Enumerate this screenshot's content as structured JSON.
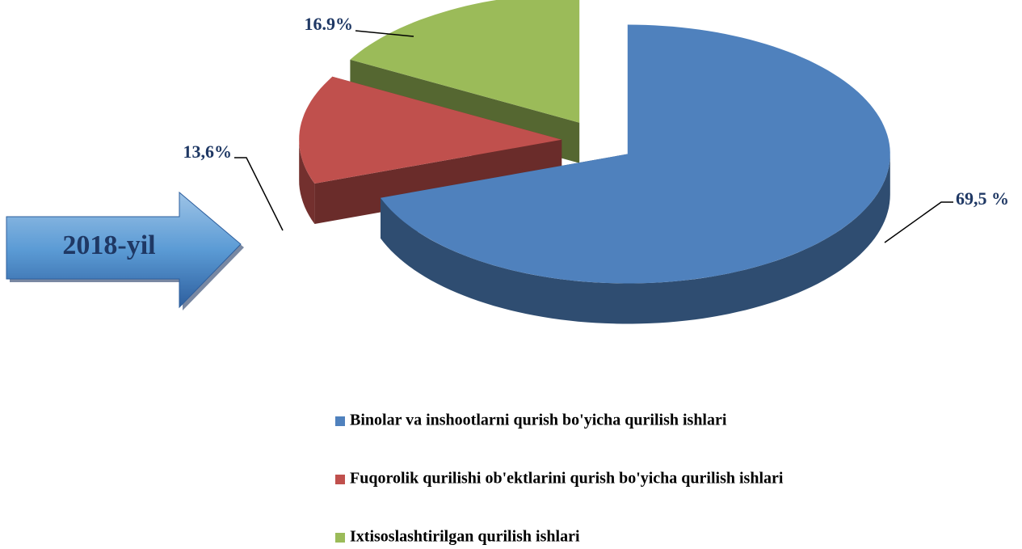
{
  "chart_data": {
    "type": "pie",
    "annotation": "2018-yil",
    "categories": [
      "Binolar va inshootlarni qurish bo'yicha qurilish ishlari",
      "Fuqorolik qurilishi ob'ektlarini qurish bo'yicha qurilish ishlari",
      "Ixtisoslashtirilgan qurilish ishlari"
    ],
    "values": [
      69.5,
      13.6,
      16.9
    ],
    "value_labels": [
      "69,5 %",
      "13,6%",
      "16.9%"
    ],
    "colors": [
      "#4f81bd",
      "#c0504d",
      "#9bbb59"
    ],
    "legend": "bottom"
  }
}
